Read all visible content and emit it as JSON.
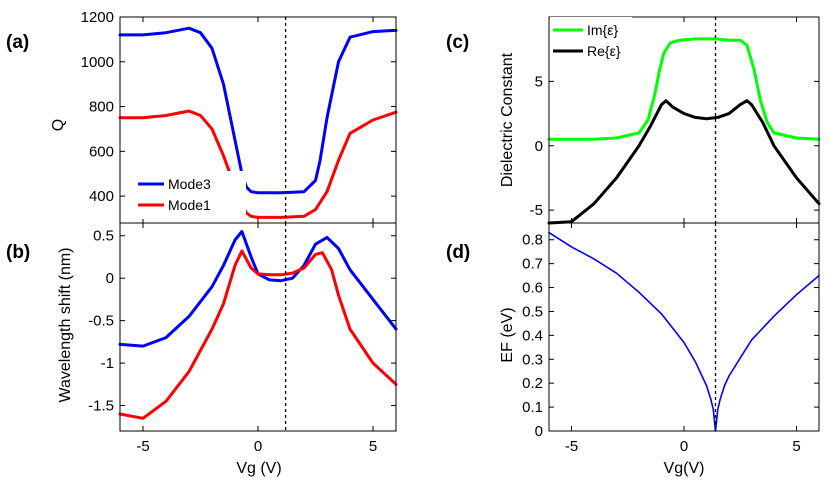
{
  "chart_data": [
    {
      "id": "a",
      "type": "line",
      "panel_label": "(a)",
      "xlabel": "",
      "ylabel": "Q",
      "xlim": [
        -6,
        6
      ],
      "ylim": [
        280,
        1200
      ],
      "xticks": [
        -5,
        0,
        5
      ],
      "yticks": [
        400,
        600,
        800,
        1000,
        1200
      ],
      "ytick_labels": [
        "400",
        "600",
        "800",
        "1000",
        "1200"
      ],
      "vline": 1.2,
      "legend_position": "lower-left",
      "series": [
        {
          "name": "Mode3",
          "color": "#0000ff",
          "x": [
            -6,
            -5,
            -4,
            -3,
            -2.5,
            -2,
            -1.5,
            -1,
            -0.7,
            -0.5,
            -0.3,
            0,
            1,
            2,
            2.5,
            2.7,
            3,
            3.5,
            4,
            5,
            6
          ],
          "values": [
            1120,
            1120,
            1130,
            1150,
            1130,
            1060,
            900,
            650,
            500,
            440,
            420,
            415,
            415,
            420,
            470,
            560,
            750,
            1000,
            1110,
            1135,
            1140
          ]
        },
        {
          "name": "Mode1",
          "color": "#ff0000",
          "x": [
            -6,
            -5,
            -4,
            -3,
            -2.5,
            -2,
            -1.5,
            -1,
            -0.7,
            -0.5,
            -0.3,
            0,
            1,
            2,
            2.5,
            3,
            3.5,
            4,
            5,
            6
          ],
          "values": [
            750,
            750,
            760,
            780,
            760,
            700,
            580,
            440,
            360,
            325,
            310,
            305,
            305,
            310,
            340,
            420,
            560,
            680,
            740,
            775
          ]
        }
      ]
    },
    {
      "id": "b",
      "type": "line",
      "panel_label": "(b)",
      "xlabel": "Vg (V)",
      "ylabel": "Wavelength shift (nm)",
      "xlim": [
        -6,
        6
      ],
      "ylim": [
        -1.8,
        0.65
      ],
      "xticks": [
        -5,
        0,
        5
      ],
      "yticks": [
        -1.5,
        -1,
        -0.5,
        0,
        0.5
      ],
      "ytick_labels": [
        "-1.5",
        "-1",
        "-0.5",
        "0",
        "0.5"
      ],
      "vline": 1.2,
      "series": [
        {
          "name": "Mode3",
          "color": "#0000ff",
          "x": [
            -6,
            -5,
            -4,
            -3,
            -2,
            -1.5,
            -1,
            -0.7,
            -0.3,
            0,
            0.5,
            1,
            1.5,
            2,
            2.5,
            3,
            3.5,
            4,
            5,
            6
          ],
          "values": [
            -0.78,
            -0.8,
            -0.7,
            -0.45,
            -0.1,
            0.15,
            0.45,
            0.55,
            0.25,
            0.05,
            -0.02,
            -0.03,
            0.0,
            0.15,
            0.4,
            0.48,
            0.35,
            0.1,
            -0.25,
            -0.6
          ]
        },
        {
          "name": "Mode1",
          "color": "#ff0000",
          "x": [
            -6,
            -5,
            -4,
            -3,
            -2,
            -1.5,
            -1,
            -0.7,
            -0.3,
            0,
            0.5,
            1,
            1.5,
            2,
            2.5,
            2.8,
            3.2,
            3.5,
            4,
            5,
            6
          ],
          "values": [
            -1.6,
            -1.65,
            -1.45,
            -1.1,
            -0.6,
            -0.3,
            0.15,
            0.32,
            0.12,
            0.05,
            0.04,
            0.04,
            0.06,
            0.12,
            0.28,
            0.3,
            0.1,
            -0.2,
            -0.6,
            -1.0,
            -1.25
          ]
        }
      ]
    },
    {
      "id": "c",
      "type": "line",
      "panel_label": "(c)",
      "xlabel": "",
      "ylabel": "Dielectric Constant",
      "xlim": [
        -6,
        6
      ],
      "ylim": [
        -6,
        10
      ],
      "xticks": [
        -5,
        0,
        5
      ],
      "yticks": [
        -5,
        0,
        5
      ],
      "ytick_labels": [
        "-5",
        "0",
        "5"
      ],
      "vline": 1.4,
      "legend_position": "top-left",
      "series": [
        {
          "name": "Im{ε}",
          "color": "#00ff00",
          "x": [
            -6,
            -4,
            -3,
            -2,
            -1.6,
            -1.3,
            -1.1,
            -0.9,
            -0.6,
            -0.2,
            0.5,
            1.4,
            2,
            2.5,
            2.8,
            3.1,
            3.4,
            3.7,
            4,
            5,
            6
          ],
          "values": [
            0.5,
            0.5,
            0.6,
            1.0,
            2.0,
            4.0,
            5.8,
            7.2,
            8.0,
            8.2,
            8.3,
            8.3,
            8.2,
            8.2,
            7.8,
            6.0,
            3.5,
            1.8,
            1.0,
            0.6,
            0.5
          ]
        },
        {
          "name": "Re{ε}",
          "color": "#000000",
          "x": [
            -6,
            -5,
            -4,
            -3,
            -2,
            -1.5,
            -1,
            -0.8,
            -0.5,
            0,
            0.5,
            1,
            1.5,
            2,
            2.5,
            2.8,
            3,
            3.5,
            4,
            5,
            6
          ],
          "values": [
            -6.0,
            -5.9,
            -4.5,
            -2.5,
            0.0,
            1.5,
            3.2,
            3.5,
            3.0,
            2.5,
            2.2,
            2.1,
            2.2,
            2.5,
            3.2,
            3.5,
            3.2,
            1.8,
            0.0,
            -2.5,
            -4.5
          ]
        }
      ]
    },
    {
      "id": "d",
      "type": "line",
      "panel_label": "(d)",
      "xlabel": "Vg(V)",
      "ylabel": "EF (eV)",
      "xlim": [
        -6,
        6
      ],
      "ylim": [
        0,
        0.87
      ],
      "xticks": [
        -5,
        0,
        5
      ],
      "yticks": [
        0,
        0.1,
        0.2,
        0.3,
        0.4,
        0.5,
        0.6,
        0.7,
        0.8
      ],
      "ytick_labels": [
        "0",
        "0.1",
        "0.2",
        "0.3",
        "0.4",
        "0.5",
        "0.6",
        "0.7",
        "0.8"
      ],
      "vline": 1.4,
      "series": [
        {
          "name": "EF",
          "color": "#0000ff",
          "x": [
            -6,
            -5,
            -4,
            -3,
            -2,
            -1,
            0,
            0.5,
            1,
            1.2,
            1.3,
            1.4,
            1.5,
            1.6,
            1.8,
            2,
            3,
            4,
            5,
            6
          ],
          "values": [
            0.83,
            0.77,
            0.72,
            0.66,
            0.58,
            0.49,
            0.37,
            0.29,
            0.19,
            0.13,
            0.09,
            0.0,
            0.09,
            0.13,
            0.19,
            0.23,
            0.38,
            0.48,
            0.57,
            0.65
          ]
        }
      ]
    }
  ]
}
